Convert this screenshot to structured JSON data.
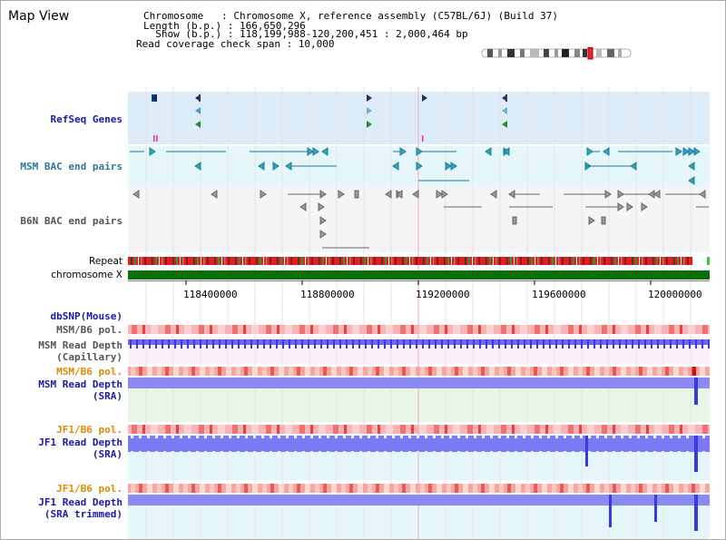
{
  "window": {
    "title": "Map View"
  },
  "info": {
    "chromosome_line": "Chromosome   : Chromosome X, reference assembly (C57BL/6J) (Build 37)",
    "length_line": "Length (b.p.) : 166,650,296",
    "show_line": "  Show (b.p.) : 118,199,988-120,200,451 : 2,000,464 bp",
    "coverage_line": "Read coverage check span : 10,000"
  },
  "tracks": {
    "refseq": "RefSeq Genes",
    "msm_bac": "MSM BAC end pairs",
    "b6n_bac": "B6N BAC end pairs",
    "repeat": "Repeat",
    "chromosome": "chromosome X",
    "dbsnp": "dbSNP(Mouse)",
    "msm_b6_pol_1": "MSM/B6 pol.",
    "msm_depth_cap": "MSM Read Depth\n(Capillary)",
    "msm_b6_pol_2": "MSM/B6 pol.",
    "msm_depth_sra": "MSM Read Depth\n(SRA)",
    "jf1_b6_pol_1": "JF1/B6 pol.",
    "jf1_depth_sra": "JF1 Read Depth\n(SRA)",
    "jf1_b6_pol_2": "JF1/B6 pol.",
    "jf1_depth_trim": "JF1 Read Depth\n(SRA trimmed)"
  },
  "scale": {
    "ticks": [
      "118400000",
      "118800000",
      "119200000",
      "119600000",
      "120000000"
    ]
  },
  "colors": {
    "refseq_bg": "#dff0fb",
    "msm_bac_bg": "#e8f8fc",
    "label_blue": "#1a1aaa",
    "label_teal": "#2a7a9a",
    "label_orange": "#e08a00",
    "label_gray": "#555555",
    "depth_blue": "#3a3ae0",
    "chrom_green": "#0a6e0a"
  }
}
